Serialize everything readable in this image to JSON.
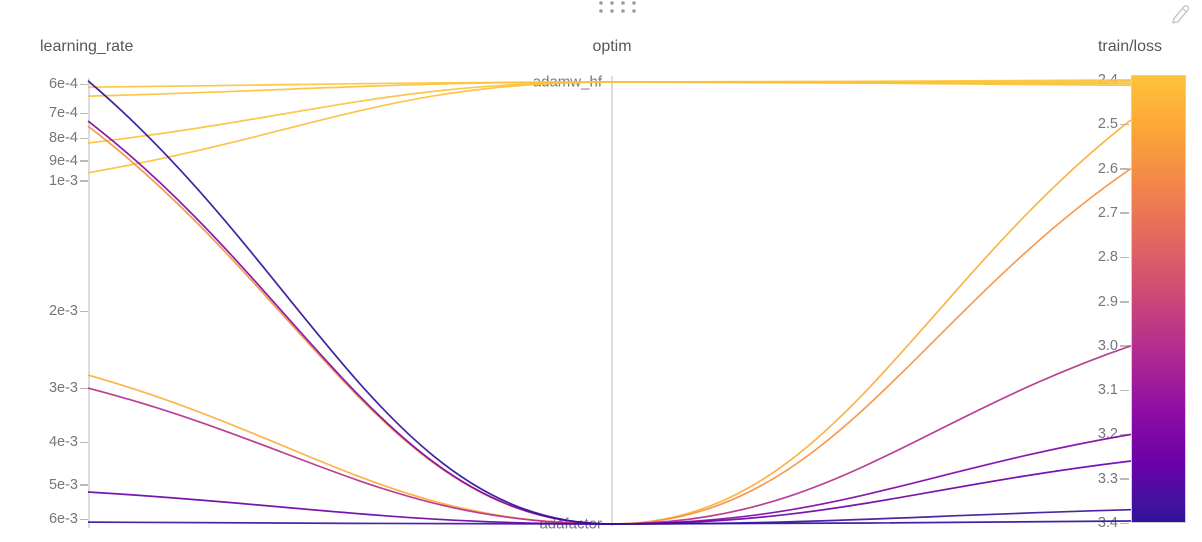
{
  "panel": {
    "drag_handle": {
      "icon": "drag-dots-icon",
      "rows": 2,
      "cols": 4
    },
    "edit_icon": "pencil-icon"
  },
  "chart_data": {
    "type": "parallel-coordinates",
    "title": "",
    "legend_position": "none",
    "grid": false,
    "axes": [
      {
        "id": "learning_rate",
        "title": "learning_rate",
        "scale": "log",
        "inverted": true,
        "domain": [
          0.0006,
          0.006
        ],
        "ticks": [
          {
            "value": 0.0006,
            "label": "6e-4"
          },
          {
            "value": 0.0007,
            "label": "7e-4"
          },
          {
            "value": 0.0008,
            "label": "8e-4"
          },
          {
            "value": 0.0009,
            "label": "9e-4"
          },
          {
            "value": 0.001,
            "label": "1e-3"
          },
          {
            "value": 0.002,
            "label": "2e-3"
          },
          {
            "value": 0.003,
            "label": "3e-3"
          },
          {
            "value": 0.004,
            "label": "4e-3"
          },
          {
            "value": 0.005,
            "label": "5e-3"
          },
          {
            "value": 0.006,
            "label": "6e-3"
          }
        ]
      },
      {
        "id": "optim",
        "title": "optim",
        "scale": "categorical",
        "categories": [
          {
            "label": "adamw_hf",
            "position": "top"
          },
          {
            "label": "adafactor",
            "position": "bottom"
          }
        ]
      },
      {
        "id": "train/loss",
        "title": "train/loss",
        "scale": "linear",
        "inverted": false,
        "domain": [
          2.4,
          3.4
        ],
        "ticks": [
          {
            "value": 2.4,
            "label": "2.4"
          },
          {
            "value": 2.5,
            "label": "2.5"
          },
          {
            "value": 2.6,
            "label": "2.6"
          },
          {
            "value": 2.7,
            "label": "2.7"
          },
          {
            "value": 2.8,
            "label": "2.8"
          },
          {
            "value": 2.9,
            "label": "2.9"
          },
          {
            "value": 3.0,
            "label": "3.0"
          },
          {
            "value": 3.1,
            "label": "3.1"
          },
          {
            "value": 3.2,
            "label": "3.2"
          },
          {
            "value": 3.3,
            "label": "3.3"
          },
          {
            "value": 3.4,
            "label": "3.4"
          }
        ],
        "colorbar_stops": [
          {
            "t": 0.0,
            "color": "#FCC33A"
          },
          {
            "t": 0.12,
            "color": "#FCA636"
          },
          {
            "t": 0.25,
            "color": "#F2844B"
          },
          {
            "t": 0.38,
            "color": "#E16462"
          },
          {
            "t": 0.5,
            "color": "#CC4778"
          },
          {
            "t": 0.62,
            "color": "#B12A90"
          },
          {
            "t": 0.75,
            "color": "#8F0DA4"
          },
          {
            "t": 0.87,
            "color": "#6A00A8"
          },
          {
            "t": 0.95,
            "color": "#45129F"
          },
          {
            "t": 1.0,
            "color": "#31119C"
          }
        ]
      }
    ],
    "runs": [
      {
        "learning_rate": 0.00059,
        "optim": "adafactor",
        "train_loss": 3.4
      },
      {
        "learning_rate": 0.00061,
        "optim": "adamw_hf",
        "train_loss": 2.4
      },
      {
        "learning_rate": 0.00064,
        "optim": "adamw_hf",
        "train_loss": 2.404
      },
      {
        "learning_rate": 0.00082,
        "optim": "adamw_hf",
        "train_loss": 2.408
      },
      {
        "learning_rate": 0.00096,
        "optim": "adamw_hf",
        "train_loss": 2.412
      },
      {
        "learning_rate": 0.00073,
        "optim": "adafactor",
        "train_loss": 3.2
      },
      {
        "learning_rate": 0.00075,
        "optim": "adafactor",
        "train_loss": 2.6
      },
      {
        "learning_rate": 0.0028,
        "optim": "adafactor",
        "train_loss": 2.49
      },
      {
        "learning_rate": 0.003,
        "optim": "adafactor",
        "train_loss": 3.0
      },
      {
        "learning_rate": 0.0052,
        "optim": "adafactor",
        "train_loss": 3.26
      },
      {
        "learning_rate": 0.0061,
        "optim": "adafactor",
        "train_loss": 3.37
      }
    ]
  }
}
